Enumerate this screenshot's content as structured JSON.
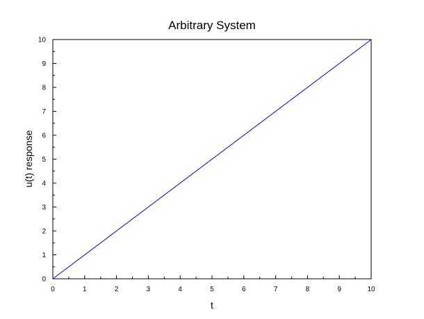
{
  "chart_data": {
    "type": "line",
    "title": "Arbitrary System",
    "xlabel": "t",
    "ylabel": "u(t) response",
    "xlim": [
      0,
      10
    ],
    "ylim": [
      0,
      10
    ],
    "xticks": [
      "0",
      "1",
      "2",
      "3",
      "4",
      "5",
      "6",
      "7",
      "8",
      "9",
      "10"
    ],
    "yticks": [
      "0",
      "1",
      "2",
      "3",
      "4",
      "5",
      "6",
      "7",
      "8",
      "9",
      "10"
    ],
    "grid": false,
    "series": [
      {
        "color": "#0000cc",
        "x": [
          0,
          10
        ],
        "y": [
          0,
          10
        ]
      }
    ]
  }
}
